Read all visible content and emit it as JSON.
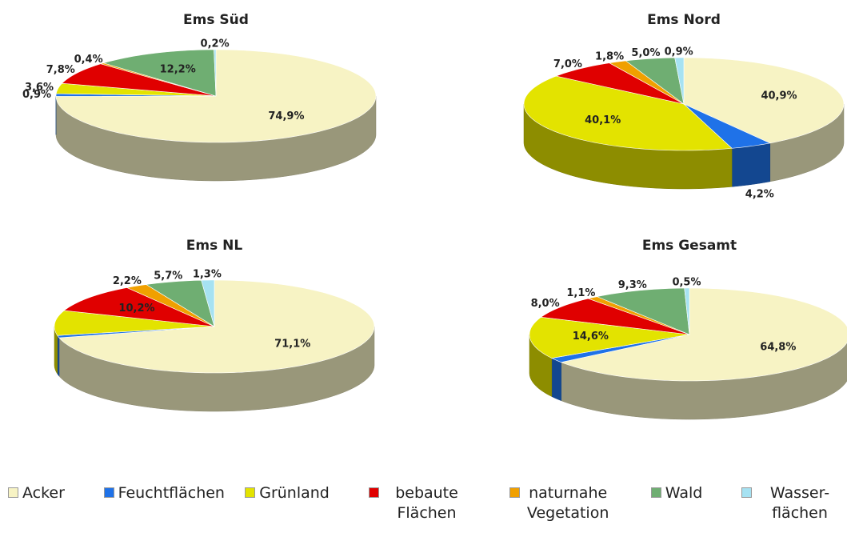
{
  "chart_data": [
    {
      "type": "pie",
      "title": "Ems Süd",
      "categories": [
        "Acker",
        "Feuchtflächen",
        "Grünland",
        "bebaute Flächen",
        "naturnahe Vegetation",
        "Wald",
        "Wasser-flächen"
      ],
      "values": [
        74.9,
        0.9,
        3.6,
        7.8,
        0.4,
        12.2,
        0.2
      ],
      "value_labels": [
        "74,9%",
        "0,9%",
        "3,6%",
        "7,8%",
        "0,4%",
        "12,2%",
        "0,2%"
      ],
      "colors": [
        "#f7f3c4",
        "#1f72e8",
        "#e3e300",
        "#e00000",
        "#f0a000",
        "#6fae72",
        "#a6e2f2"
      ]
    },
    {
      "type": "pie",
      "title": "Ems Nord",
      "categories": [
        "Acker",
        "Feuchtflächen",
        "Grünland",
        "bebaute Flächen",
        "naturnahe Vegetation",
        "Wald",
        "Wasser-flächen"
      ],
      "values": [
        40.9,
        4.2,
        40.1,
        7.0,
        1.8,
        5.0,
        0.9
      ],
      "value_labels": [
        "40,9%",
        "4,2%",
        "40,1%",
        "7,0%",
        "1,8%",
        "5,0%",
        "0,9%"
      ],
      "colors": [
        "#f7f3c4",
        "#1f72e8",
        "#e3e300",
        "#e00000",
        "#f0a000",
        "#6fae72",
        "#a6e2f2"
      ]
    },
    {
      "type": "pie",
      "title": "Ems NL",
      "categories": [
        "Acker",
        "Feuchtflächen",
        "Grünland",
        "bebaute Flächen",
        "naturnahe Vegetation",
        "Wald",
        "Wasser-flächen"
      ],
      "values": [
        71.1,
        0.8,
        8.7,
        10.2,
        2.2,
        5.7,
        1.3
      ],
      "value_labels": [
        "71,1%",
        null,
        null,
        "10,2%",
        "2,2%",
        "5,7%",
        "1,3%"
      ],
      "colors": [
        "#f7f3c4",
        "#1f72e8",
        "#e3e300",
        "#e00000",
        "#f0a000",
        "#6fae72",
        "#a6e2f2"
      ]
    },
    {
      "type": "pie",
      "title": "Ems Gesamt",
      "categories": [
        "Acker",
        "Feuchtflächen",
        "Grünland",
        "bebaute Flächen",
        "naturnahe Vegetation",
        "Wald",
        "Wasser-flächen"
      ],
      "values": [
        64.8,
        1.7,
        14.6,
        8.0,
        1.1,
        9.3,
        0.5
      ],
      "value_labels": [
        "64,8%",
        null,
        "14,6%",
        "8,0%",
        "1,1%",
        "9,3%",
        "0,5%"
      ],
      "colors": [
        "#f7f3c4",
        "#1f72e8",
        "#e3e300",
        "#e00000",
        "#f0a000",
        "#6fae72",
        "#a6e2f2"
      ]
    }
  ]
}
